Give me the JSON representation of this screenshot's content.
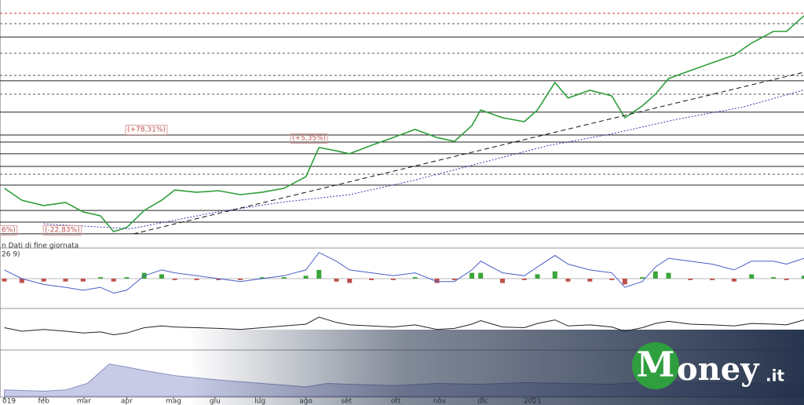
{
  "chart_data": {
    "type": "line",
    "xlim": [
      0,
      18.4
    ],
    "xticks": [
      {
        "value": 0.1,
        "label": "019"
      },
      {
        "value": 1,
        "label": "feb"
      },
      {
        "value": 1.92,
        "label": "mar"
      },
      {
        "value": 2.9,
        "label": "apr"
      },
      {
        "value": 3.97,
        "label": "mag"
      },
      {
        "value": 4.92,
        "label": "giu"
      },
      {
        "value": 5.95,
        "label": "lug"
      },
      {
        "value": 7,
        "label": "ago"
      },
      {
        "value": 7.93,
        "label": "set"
      },
      {
        "value": 9.06,
        "label": "ott"
      },
      {
        "value": 10.06,
        "label": "nov"
      },
      {
        "value": 11.05,
        "label": "dic"
      },
      {
        "value": 12.19,
        "label": "2021"
      }
    ],
    "annotations": [
      "(+78,31%)",
      "(+5,35%)",
      "(-22,83%)",
      "6%)",
      "n Dati di fine giornata",
      "26 9)"
    ],
    "logo": [
      "M",
      "oney",
      ".it"
    ],
    "panels": [
      {
        "ylim": [
          0,
          100
        ],
        "resistance_levels": [
          94.5
        ],
        "dashed_levels": [
          90.3,
          78.1,
          69,
          61.3,
          28.4
        ],
        "solid_levels": [
          84.8,
          66.8,
          53.9,
          44.5,
          41.6,
          36.8,
          31.6,
          23.9,
          13.5,
          8.7,
          3.9
        ],
        "series": [
          {
            "color": "#2e9e3a",
            "x": [
              0.1,
              0.5,
              1,
              1.5,
              1.9,
              2.3,
              2.6,
              2.9,
              3.3,
              3.7,
              4,
              4.5,
              5,
              5.5,
              6,
              6.5,
              7,
              7.3,
              7.7,
              8,
              8.5,
              9,
              9.5,
              10,
              10.4,
              10.8,
              11,
              11.5,
              12,
              12.3,
              12.7,
              13,
              13.5,
              14,
              14.3,
              14.7,
              15,
              15.3,
              15.8,
              16.3,
              16.8,
              17.2,
              17.7,
              18,
              18.4
            ],
            "values": [
              22.6,
              17.7,
              15.5,
              16.8,
              12.9,
              11.3,
              4.8,
              6.5,
              13.5,
              17.7,
              21.9,
              21,
              21.6,
              20,
              21,
              22.6,
              27.4,
              39.4,
              38,
              36.8,
              40.3,
              43.5,
              46.8,
              43.5,
              41.9,
              48.4,
              54.8,
              51.6,
              50,
              54.8,
              66.1,
              59.7,
              62.9,
              60.6,
              51.6,
              56.5,
              61.3,
              67.7,
              71,
              74.2,
              77.4,
              82.3,
              87.1,
              87.1,
              93.5
            ]
          },
          {
            "color": "#3a3ab0",
            "x": [
              1,
              3,
              5,
              6.5,
              8,
              9.5,
              11,
              12.5,
              14,
              15.5,
              17,
              18.4
            ],
            "values": [
              8,
              6,
              13,
              17,
              20,
              26,
              33,
              40,
              45,
              51,
              56,
              63
            ]
          }
        ]
      },
      {
        "ylim": [
          -1,
          1
        ],
        "series": [
          {
            "color": "#4a5ec8",
            "x": [
              0.1,
              0.5,
              1,
              1.5,
              1.9,
              2.3,
              2.6,
              2.9,
              3.3,
              3.7,
              4,
              4.5,
              5,
              5.5,
              6,
              6.5,
              7,
              7.3,
              7.7,
              8,
              8.5,
              9,
              9.5,
              10,
              10.4,
              10.8,
              11,
              11.5,
              12,
              12.3,
              12.7,
              13,
              13.5,
              14,
              14.3,
              14.7,
              15,
              15.3,
              15.8,
              16.3,
              16.8,
              17.2,
              17.7,
              18,
              18.4
            ],
            "values": [
              0.3,
              0,
              -0.2,
              -0.3,
              -0.4,
              -0.3,
              -0.5,
              -0.4,
              0.1,
              0.3,
              0.2,
              0.1,
              0,
              -0.1,
              0,
              0.1,
              0.3,
              0.9,
              0.6,
              0.3,
              0.2,
              0.1,
              0.2,
              -0.1,
              -0.1,
              0.3,
              0.6,
              0.2,
              0.1,
              0.4,
              0.8,
              0.5,
              0.3,
              0.2,
              -0.3,
              -0.1,
              0.4,
              0.7,
              0.6,
              0.5,
              0.3,
              0.6,
              0.6,
              0.5,
              0.7
            ]
          }
        ],
        "histogram": {
          "x": [
            0.1,
            0.5,
            1,
            1.5,
            1.9,
            2.3,
            2.6,
            2.9,
            3.3,
            3.7,
            4,
            4.5,
            5,
            5.5,
            6,
            6.5,
            7,
            7.3,
            7.7,
            8,
            8.5,
            9,
            9.5,
            10,
            10.4,
            10.8,
            11,
            11.5,
            12,
            12.3,
            12.7,
            13,
            13.5,
            14,
            14.3,
            14.7,
            15,
            15.3,
            15.8,
            16.3,
            16.8,
            17.2,
            17.7,
            18,
            18.4
          ],
          "values": [
            -0.1,
            -0.15,
            -0.1,
            -0.1,
            -0.1,
            0.05,
            -0.1,
            0.05,
            0.2,
            0.15,
            -0.05,
            -0.05,
            -0.05,
            -0.05,
            0.05,
            0.05,
            0.1,
            0.3,
            -0.1,
            -0.15,
            -0.05,
            -0.05,
            0.05,
            -0.15,
            -0.05,
            0.2,
            0.2,
            -0.15,
            -0.05,
            0.15,
            0.25,
            -0.1,
            -0.1,
            -0.05,
            -0.2,
            0.05,
            0.25,
            0.2,
            -0.05,
            -0.05,
            -0.1,
            0.15,
            0.05,
            -0.05,
            0.1
          ],
          "colors": [
            "#3aa63a",
            "#c0504d"
          ]
        }
      },
      {
        "ylim": [
          0,
          100
        ],
        "series": [
          {
            "color": "#222",
            "x": [
              0.1,
              0.5,
              1,
              1.5,
              1.9,
              2.3,
              2.6,
              2.9,
              3.3,
              3.7,
              4,
              4.5,
              5,
              5.5,
              6,
              6.5,
              7,
              7.3,
              7.7,
              8,
              8.5,
              9,
              9.5,
              10,
              10.4,
              10.8,
              11,
              11.5,
              12,
              12.3,
              12.7,
              13,
              13.5,
              14,
              14.3,
              14.7,
              15,
              15.3,
              15.8,
              16.3,
              16.8,
              17.2,
              17.7,
              18,
              18.4
            ],
            "values": [
              50,
              40,
              45,
              40,
              35,
              38,
              30,
              35,
              50,
              55,
              52,
              50,
              48,
              45,
              50,
              55,
              60,
              80,
              65,
              58,
              55,
              52,
              58,
              45,
              48,
              60,
              70,
              52,
              50,
              62,
              72,
              55,
              58,
              52,
              40,
              50,
              62,
              68,
              60,
              58,
              55,
              62,
              60,
              58,
              72
            ]
          }
        ]
      },
      {
        "ylim": [
          0,
          100
        ],
        "series": [
          {
            "color": "#8a90c0",
            "x": [
              0.1,
              1,
              1.5,
              2,
              2.5,
              2.9,
              3.3,
              4,
              5,
              6,
              7,
              7.5,
              8,
              9,
              10,
              11,
              12,
              13,
              14,
              15,
              16,
              17,
              18.4
            ],
            "values": [
              15,
              12,
              15,
              30,
              75,
              68,
              60,
              48,
              38,
              30,
              22,
              30,
              28,
              25,
              30,
              28,
              32,
              30,
              28,
              35,
              32,
              30,
              28
            ]
          }
        ]
      }
    ]
  }
}
